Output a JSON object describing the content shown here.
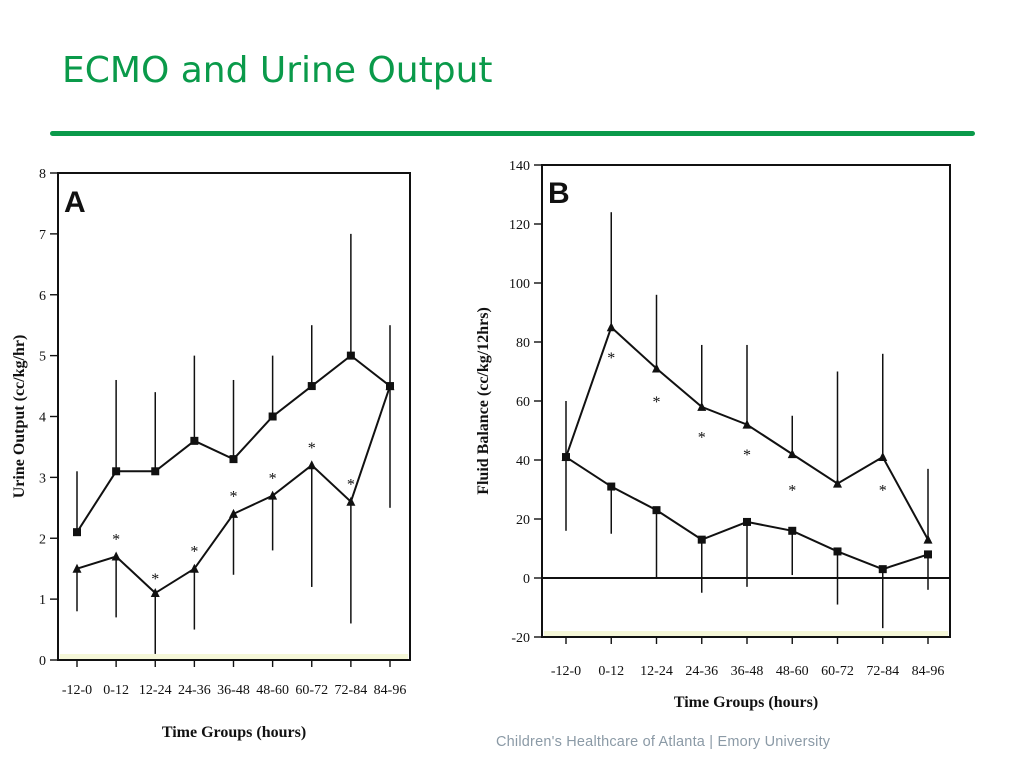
{
  "slide": {
    "title": "ECMO and Urine Output",
    "footer": "Children's Healthcare of Atlanta | Emory University",
    "accent_color": "#0a9a4a"
  },
  "chart_data": [
    {
      "type": "line",
      "panel": "A",
      "title": "",
      "xlabel": "Time Groups (hours)",
      "ylabel": "Urine Output (cc/kg/hr)",
      "categories": [
        "-12-0",
        "0-12",
        "12-24",
        "24-36",
        "36-48",
        "48-60",
        "60-72",
        "72-84",
        "84-96"
      ],
      "ylim": [
        0,
        8
      ],
      "yticks": [
        0,
        1,
        2,
        3,
        4,
        5,
        6,
        7,
        8
      ],
      "series": [
        {
          "marker": "square",
          "values": [
            2.1,
            3.1,
            3.1,
            3.6,
            3.3,
            4.0,
            4.5,
            5.0,
            4.5
          ],
          "error_upper": [
            3.1,
            4.6,
            4.4,
            5.0,
            4.6,
            5.0,
            5.5,
            7.0,
            5.5
          ],
          "error_lower": [
            null,
            null,
            null,
            null,
            null,
            null,
            null,
            null,
            2.5
          ]
        },
        {
          "marker": "triangle",
          "values": [
            1.5,
            1.7,
            1.1,
            1.5,
            2.4,
            2.7,
            3.2,
            2.6,
            4.5
          ],
          "error_upper": [
            null,
            null,
            null,
            null,
            null,
            null,
            null,
            null,
            null
          ],
          "error_lower": [
            0.8,
            0.7,
            0.1,
            0.5,
            1.4,
            1.8,
            1.2,
            0.6,
            null
          ]
        }
      ],
      "significance_marks": [
        {
          "category": "0-12",
          "symbol": "*",
          "y": 2.0
        },
        {
          "category": "12-24",
          "symbol": "*",
          "y": 1.35
        },
        {
          "category": "24-36",
          "symbol": "*",
          "y": 1.8
        },
        {
          "category": "36-48",
          "symbol": "*",
          "y": 2.7
        },
        {
          "category": "48-60",
          "symbol": "*",
          "y": 3.0
        },
        {
          "category": "60-72",
          "symbol": "*",
          "y": 3.5
        },
        {
          "category": "72-84",
          "symbol": "*",
          "y": 2.9
        }
      ]
    },
    {
      "type": "line",
      "panel": "B",
      "title": "",
      "xlabel": "Time Groups (hours)",
      "ylabel": "Fluid Balance (cc/kg/12hrs)",
      "categories": [
        "-12-0",
        "0-12",
        "12-24",
        "24-36",
        "36-48",
        "48-60",
        "60-72",
        "72-84",
        "84-96"
      ],
      "ylim": [
        -20,
        140
      ],
      "yticks": [
        -20,
        0,
        20,
        40,
        60,
        80,
        100,
        120,
        140
      ],
      "series": [
        {
          "marker": "triangle",
          "values": [
            41,
            85,
            71,
            58,
            52,
            42,
            32,
            41,
            13
          ],
          "error_upper": [
            60,
            124,
            96,
            79,
            79,
            55,
            70,
            76,
            37
          ],
          "error_lower": [
            null,
            null,
            null,
            null,
            null,
            null,
            null,
            null,
            null
          ]
        },
        {
          "marker": "square",
          "values": [
            41,
            31,
            23,
            13,
            19,
            16,
            9,
            3,
            8
          ],
          "error_upper": [
            null,
            null,
            null,
            null,
            null,
            null,
            null,
            null,
            null
          ],
          "error_lower": [
            16,
            15,
            0,
            -5,
            -3,
            1,
            -9,
            -17,
            -4
          ]
        }
      ],
      "significance_marks": [
        {
          "category": "0-12",
          "symbol": "*",
          "y": 75
        },
        {
          "category": "12-24",
          "symbol": "*",
          "y": 60
        },
        {
          "category": "24-36",
          "symbol": "*",
          "y": 48
        },
        {
          "category": "36-48",
          "symbol": "*",
          "y": 42
        },
        {
          "category": "48-60",
          "symbol": "*",
          "y": 30
        },
        {
          "category": "72-84",
          "symbol": "*",
          "y": 30
        }
      ]
    }
  ]
}
